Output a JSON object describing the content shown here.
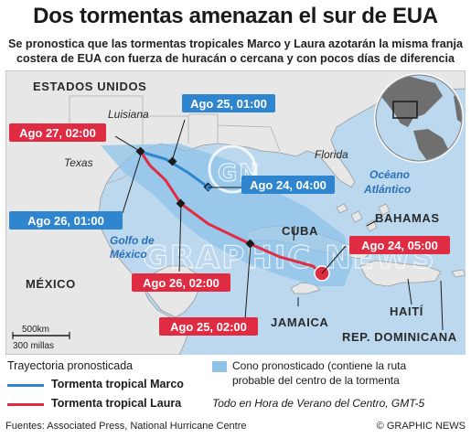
{
  "title": "Dos tormentas amenazan el sur de EUA",
  "subtitle": "Se pronostica que las tormentas tropicales Marco y Laura azotarán la misma franja costera de EUA con fuerza de huracán o cercana y con pocos días de diferencia",
  "map_labels": {
    "usa": "ESTADOS UNIDOS",
    "luisiana": "Luisiana",
    "texas": "Texas",
    "florida": "Florida",
    "mexico": "MÉXICO",
    "cuba": "CUBA",
    "bahamas": "BAHAMAS",
    "jamaica": "JAMAICA",
    "haiti": "HAITÍ",
    "rep_dominicana": "REP. DOMINICANA",
    "golfo_1": "Golfo de",
    "golfo_2": "México",
    "oceano_1": "Océano",
    "oceano_2": "Atlántico"
  },
  "forecast_points": {
    "marco": [
      {
        "label": "Ago 24, 04:00"
      },
      {
        "label": "Ago 25, 01:00"
      },
      {
        "label": "Ago 26, 01:00"
      }
    ],
    "laura": [
      {
        "label": "Ago 24, 05:00"
      },
      {
        "label": "Ago 25, 02:00"
      },
      {
        "label": "Ago 26, 02:00"
      },
      {
        "label": "Ago 27, 02:00"
      }
    ]
  },
  "scale": {
    "km": "500km",
    "miles": "300 millas"
  },
  "watermark": {
    "logo": "GN",
    "text": "GRAPHIC NEWS"
  },
  "legend": {
    "heading": "Trayectoria pronosticada",
    "marco": "Tormenta tropical Marco",
    "laura": "Tormenta tropical Laura",
    "cone_line1": "Cono pronosticado (contiene la ruta",
    "cone_line2": "probable del centro de la tormenta",
    "timezone": "Todo en Hora de Verano del Centro, GMT-5"
  },
  "footer": {
    "sources": "Fuentes: Associated Press, National Hurricane Centre",
    "credit": "© GRAPHIC NEWS"
  },
  "colors": {
    "sea": "#bcd8ee",
    "land": "#e7e7e7",
    "marco": "#2f86cf",
    "laura": "#e02c43",
    "cone": "#8fc3e8"
  }
}
